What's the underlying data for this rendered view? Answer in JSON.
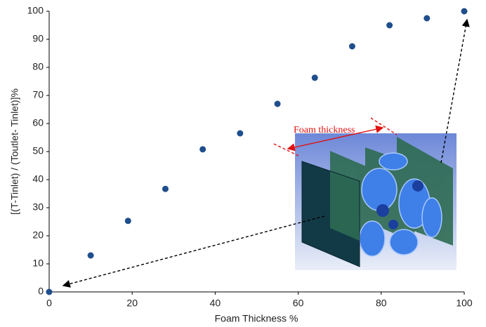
{
  "chart_data": {
    "type": "scatter",
    "x_label": "Foam Thickness %",
    "y_label": "[(T-Tinlet) / (Toutlet- Tinlet)]%",
    "annotation": "Foam thickness",
    "color": "#1f4e8c",
    "x": [
      0,
      10,
      19,
      28,
      37,
      46,
      55,
      64,
      73,
      82,
      91,
      100
    ],
    "values": [
      0,
      13,
      25.3,
      36.7,
      50.8,
      56.5,
      67,
      76.3,
      87.5,
      95,
      97.5,
      100
    ],
    "xlim": [
      0,
      100
    ],
    "ylim": [
      0,
      100
    ],
    "xticks": [
      0,
      20,
      40,
      60,
      80,
      100
    ],
    "yticks": [
      0,
      10,
      20,
      30,
      40,
      50,
      60,
      70,
      80,
      90,
      100
    ],
    "grid": false
  }
}
